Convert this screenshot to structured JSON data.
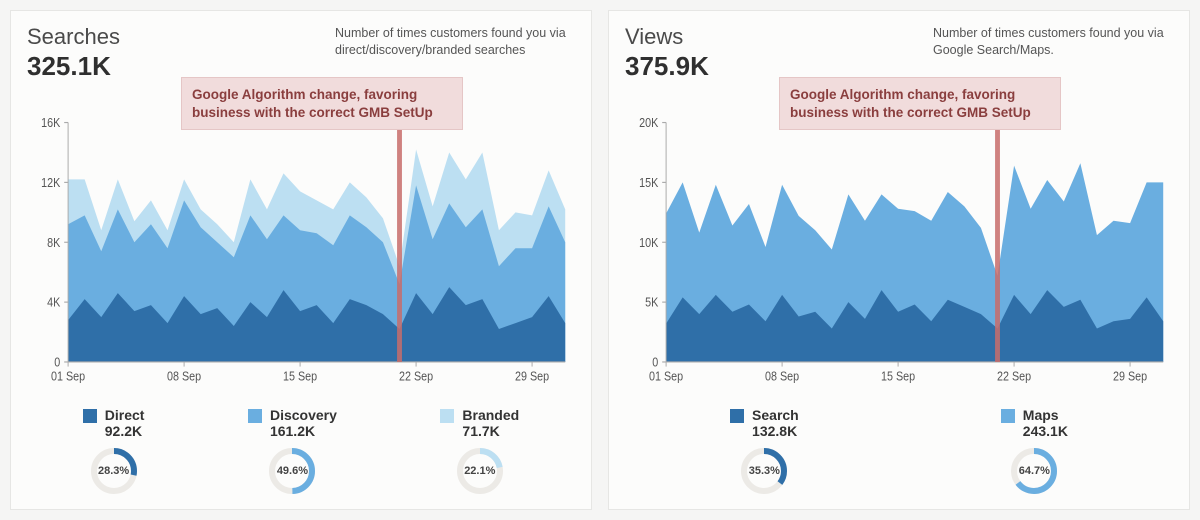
{
  "background_color": "#f5f5f4",
  "card_bg": "#fcfcfb",
  "card_border": "#e6e6e4",
  "callout_bg": "#f1dcdc",
  "callout_border": "#e5c6c6",
  "callout_text_color": "#8a3e3e",
  "arrow_color": "#c86d6b",
  "axis_color": "#aaaaaa",
  "tick_color": "#555555",
  "panels": {
    "searches": {
      "title": "Searches",
      "total": "325.1K",
      "description": "Number of times customers found you via direct/discovery/branded searches",
      "callout": "Google Algorithm change, favoring business with the correct GMB SetUp",
      "chart": {
        "type": "stacked-area",
        "y_max": 16000,
        "y_tick_step": 4000,
        "y_tick_labels": [
          "0",
          "4K",
          "8K",
          "12K",
          "16K"
        ],
        "x_labels": [
          "01 Sep",
          "08 Sep",
          "15 Sep",
          "22 Sep",
          "29 Sep"
        ],
        "x_label_indices": [
          0,
          7,
          14,
          21,
          28
        ],
        "arrow_x_index": 20,
        "n_points": 31,
        "series": [
          {
            "name": "Direct",
            "color": "#2f6fa8",
            "values": [
              2800,
              4200,
              3000,
              4600,
              3400,
              3800,
              2600,
              4400,
              3200,
              3600,
              2400,
              4000,
              3000,
              4800,
              3400,
              3800,
              2600,
              4200,
              3800,
              3200,
              2200,
              4600,
              3200,
              5000,
              3800,
              4200,
              2200,
              2600,
              3000,
              4400,
              2600
            ]
          },
          {
            "name": "Discovery",
            "color": "#6aaee0",
            "values": [
              6400,
              5600,
              4400,
              5600,
              4600,
              5400,
              5000,
              6400,
              5800,
              4400,
              4600,
              5800,
              5200,
              5000,
              5400,
              4800,
              5200,
              5600,
              5200,
              4800,
              3000,
              7200,
              5000,
              5600,
              5200,
              6000,
              4200,
              5000,
              4600,
              6000,
              5400
            ]
          },
          {
            "name": "Branded",
            "color": "#bcdff2",
            "values": [
              3000,
              2400,
              1400,
              2000,
              1400,
              1600,
              1200,
              1400,
              1200,
              1200,
              1000,
              2400,
              2000,
              2800,
              2600,
              2200,
              2400,
              2200,
              2000,
              1600,
              1200,
              2400,
              2200,
              3400,
              3200,
              3800,
              2400,
              2400,
              2200,
              2400,
              2200
            ]
          }
        ]
      },
      "legend": [
        {
          "name": "Direct",
          "value": "92.2K",
          "pct": 28.3,
          "color": "#2f6fa8"
        },
        {
          "name": "Discovery",
          "value": "161.2K",
          "pct": 49.6,
          "color": "#6aaee0"
        },
        {
          "name": "Branded",
          "value": "71.7K",
          "pct": 22.1,
          "color": "#bcdff2"
        }
      ]
    },
    "views": {
      "title": "Views",
      "total": "375.9K",
      "description": "Number of times customers found you via Google Search/Maps.",
      "callout": "Google Algorithm change, favoring business with the correct GMB SetUp",
      "chart": {
        "type": "stacked-area",
        "y_max": 20000,
        "y_tick_step": 5000,
        "y_tick_labels": [
          "0",
          "5K",
          "10K",
          "15K",
          "20K"
        ],
        "x_labels": [
          "01 Sep",
          "08 Sep",
          "15 Sep",
          "22 Sep",
          "29 Sep"
        ],
        "x_label_indices": [
          0,
          7,
          14,
          21,
          28
        ],
        "arrow_x_index": 20,
        "n_points": 31,
        "series": [
          {
            "name": "Search",
            "color": "#2f6fa8",
            "values": [
              3200,
              5400,
              4000,
              5600,
              4200,
              4800,
              3400,
              5600,
              3800,
              4200,
              2800,
              5000,
              3600,
              6000,
              4200,
              4800,
              3400,
              5200,
              4600,
              4000,
              2800,
              5600,
              4000,
              6000,
              4600,
              5200,
              2800,
              3400,
              3600,
              5400,
              3400
            ]
          },
          {
            "name": "Maps",
            "color": "#6aaee0",
            "values": [
              9200,
              9600,
              6800,
              9200,
              7200,
              8400,
              6200,
              9200,
              8400,
              6800,
              6600,
              9000,
              8200,
              8000,
              8600,
              7800,
              8400,
              9000,
              8400,
              7200,
              4400,
              10800,
              8800,
              9200,
              8800,
              11400,
              7800,
              8400,
              8000,
              9600,
              11600
            ]
          }
        ]
      },
      "legend": [
        {
          "name": "Search",
          "value": "132.8K",
          "pct": 35.3,
          "color": "#2f6fa8"
        },
        {
          "name": "Maps",
          "value": "243.1K",
          "pct": 64.7,
          "color": "#6aaee0"
        }
      ]
    }
  }
}
